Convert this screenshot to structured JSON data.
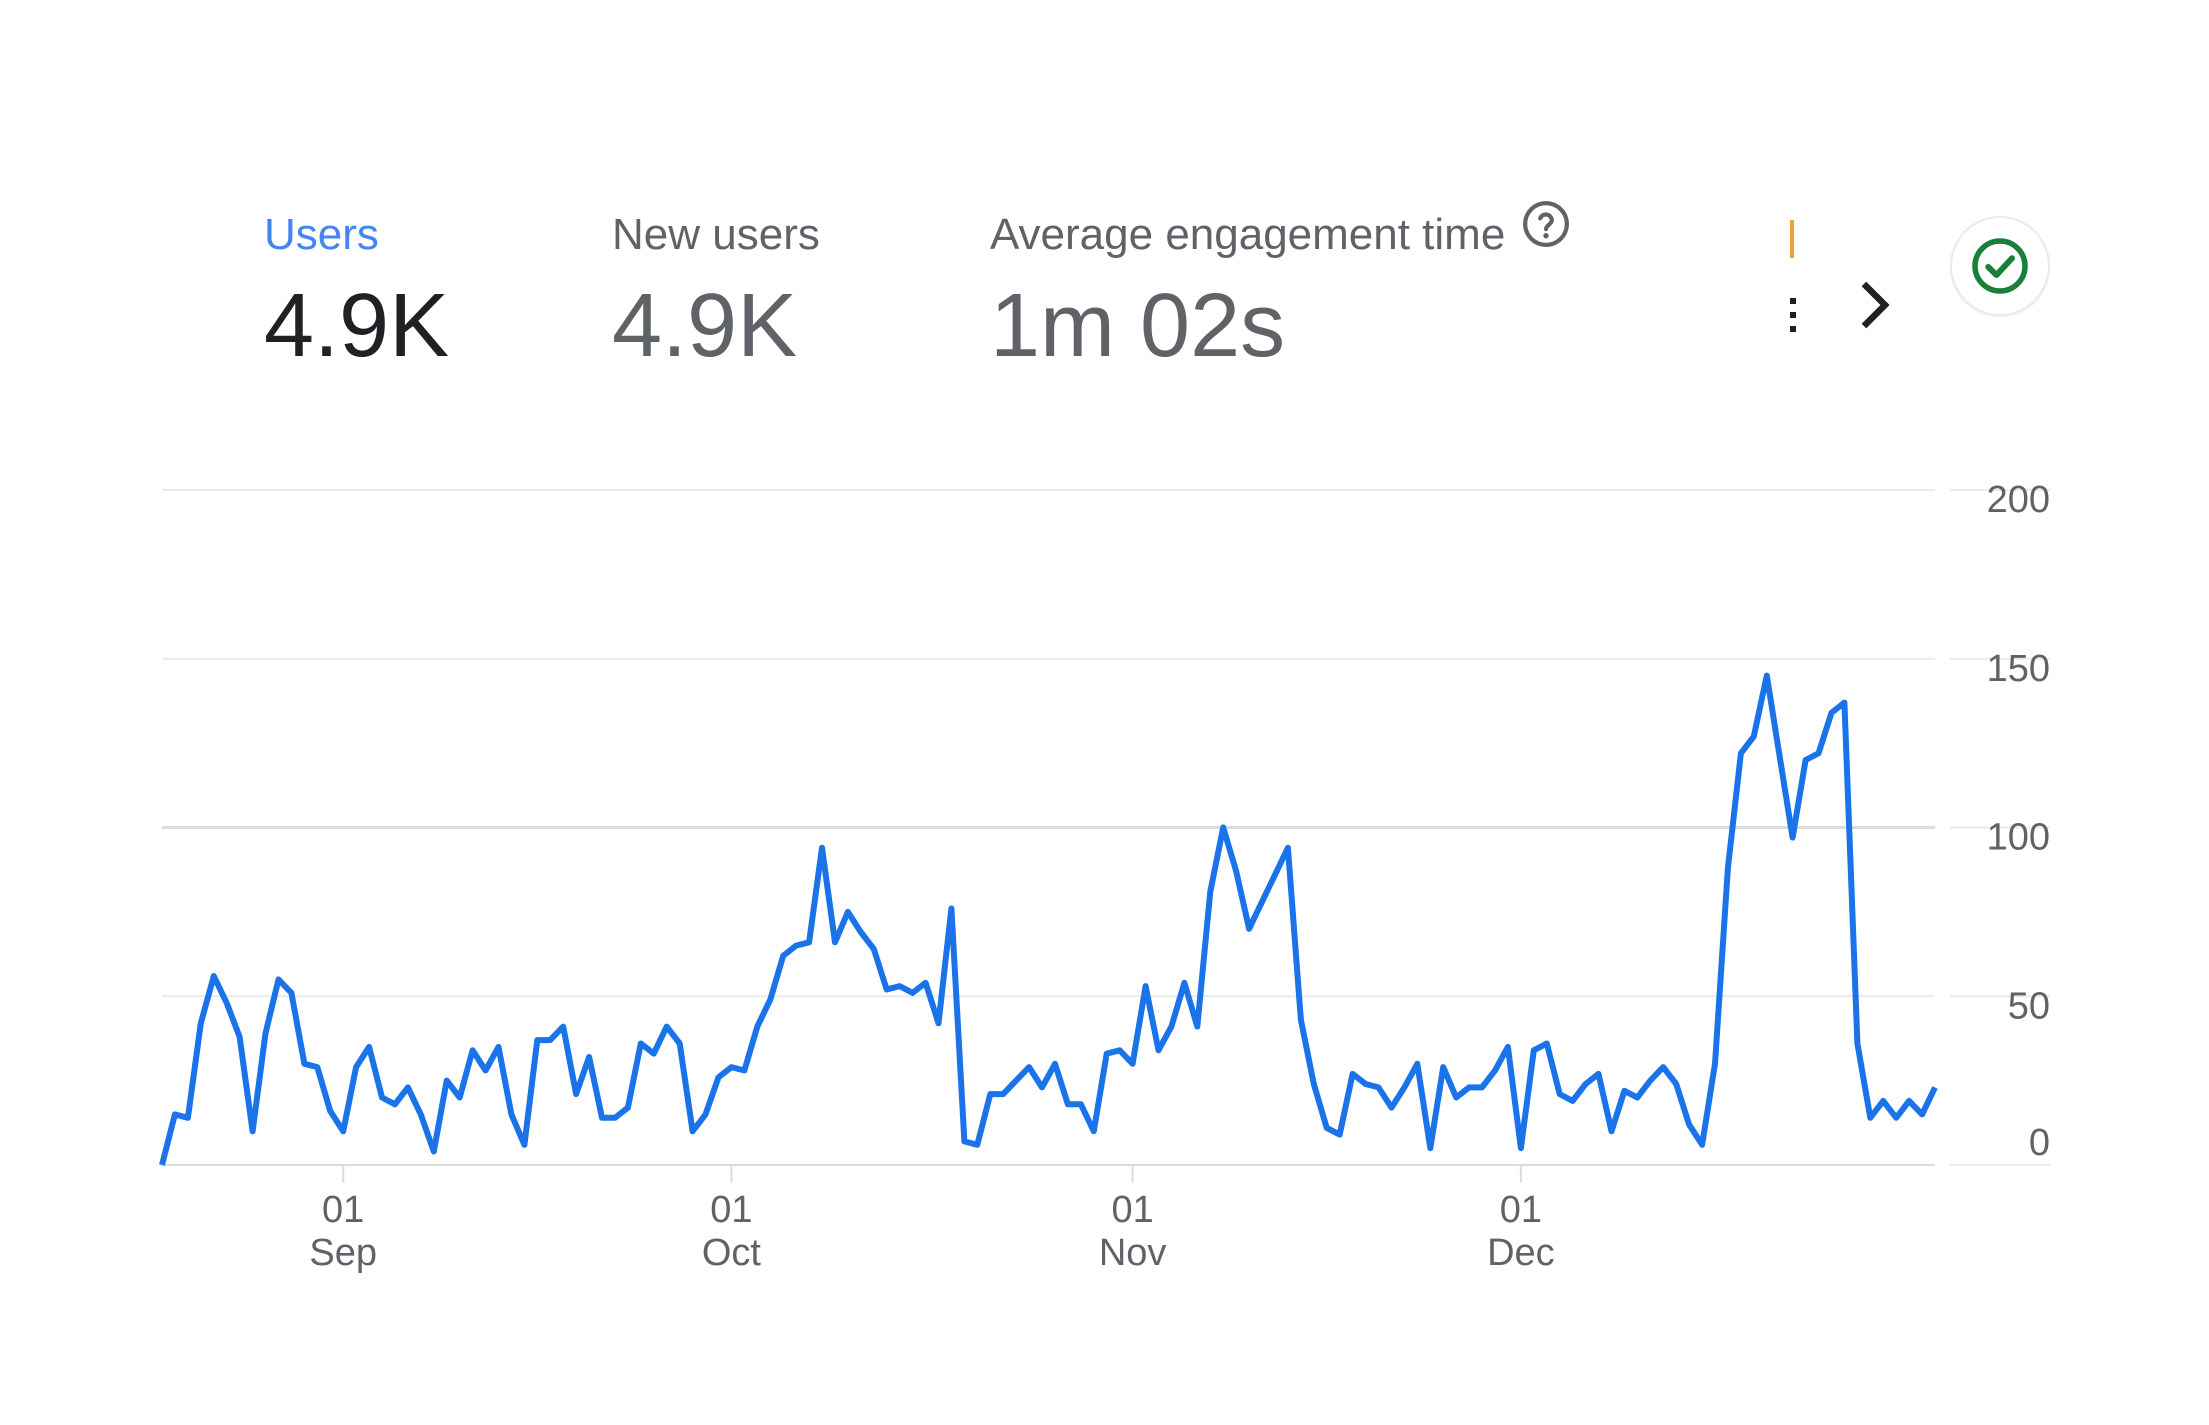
{
  "metrics": [
    {
      "label": "Users",
      "value": "4.9K",
      "selected": true
    },
    {
      "label": "New users",
      "value": "4.9K",
      "selected": false
    },
    {
      "label": "Average engagement time",
      "value": "1m 02s",
      "selected": false
    }
  ],
  "icons": {
    "help": "help-circle-icon",
    "next": "chevron-right-icon",
    "status": "check-circle-icon"
  },
  "colors": {
    "selected_label": "#4285f4",
    "line": "#1a73e8",
    "status_check": "#188038",
    "grid": "#e8eaed"
  },
  "chart_data": {
    "type": "line",
    "title": "",
    "xlabel": "",
    "ylabel": "",
    "ylim": [
      0,
      200
    ],
    "y_ticks": [
      "200",
      "150",
      "100",
      "50",
      "0"
    ],
    "x_tick_labels": [
      {
        "day": "01",
        "month": "Sep"
      },
      {
        "day": "01",
        "month": "Oct"
      },
      {
        "day": "01",
        "month": "Nov"
      },
      {
        "day": "01",
        "month": "Dec"
      }
    ],
    "grid": true,
    "series": [
      {
        "values": [
          0,
          15,
          14,
          42,
          56,
          48,
          38,
          10,
          39,
          55,
          51,
          30,
          29,
          16,
          10,
          29,
          35,
          20,
          18,
          23,
          15,
          4,
          25,
          20,
          34,
          28,
          35,
          15,
          6,
          37,
          37,
          41,
          21,
          32,
          14,
          14,
          17,
          36,
          33,
          41,
          36,
          10,
          15,
          26,
          29,
          28,
          41,
          49,
          62,
          65,
          66,
          94,
          66,
          75,
          69,
          64,
          52,
          53,
          51,
          54,
          42,
          76,
          7,
          6,
          21,
          21,
          25,
          29,
          23,
          30,
          18,
          18,
          10,
          33,
          34,
          30,
          53,
          34,
          41,
          54,
          41,
          81,
          100,
          87,
          70,
          78,
          86,
          94,
          43,
          24,
          11,
          9,
          27,
          24,
          23,
          17,
          23,
          30,
          5,
          29,
          20,
          23,
          23,
          28,
          35,
          5,
          34,
          36,
          21,
          19,
          24,
          27,
          10,
          22,
          20,
          25,
          29,
          24,
          12,
          6,
          30,
          88,
          122,
          127,
          145,
          121,
          97,
          120,
          122,
          134,
          137,
          36,
          14,
          19,
          14,
          19,
          15,
          23
        ]
      }
    ]
  }
}
